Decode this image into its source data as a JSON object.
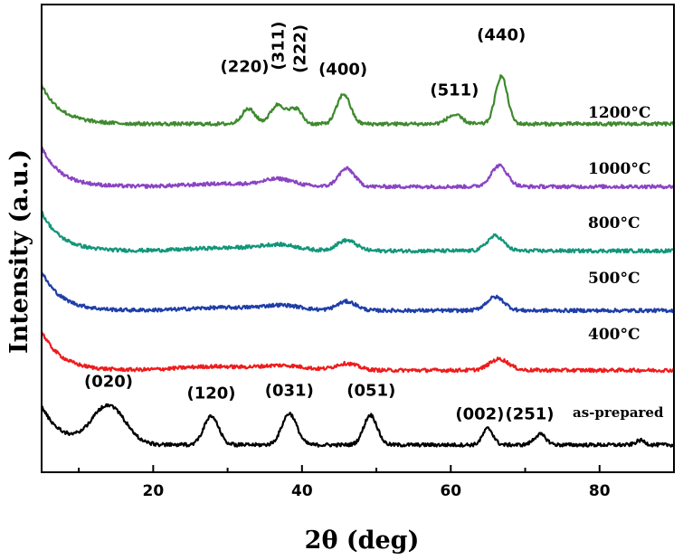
{
  "chart_data": {
    "type": "line",
    "title": "",
    "xlabel": "2θ (deg)",
    "ylabel": "Intensity (a.u.)",
    "xlim": [
      5,
      90
    ],
    "xticks": [
      20,
      40,
      60,
      80
    ],
    "grid": false,
    "series": [
      {
        "name": "as-prepared",
        "label": "as-prepared",
        "color": "#000000",
        "base": 0.5,
        "noise": 0.12,
        "peaks": [
          [
            14,
            2.6,
            2.2
          ],
          [
            27.8,
            1.9,
            1.0
          ],
          [
            38.3,
            2.1,
            1.0
          ],
          [
            49.2,
            2.0,
            0.9
          ],
          [
            65.0,
            1.1,
            0.7
          ],
          [
            72.0,
            0.7,
            0.8
          ],
          [
            85.5,
            0.3,
            0.6
          ]
        ]
      },
      {
        "name": "400°C",
        "label": "400°C",
        "color": "#ee1c1c",
        "base": 5.5,
        "noise": 0.12,
        "peaks": [
          [
            28,
            0.25,
            4.5
          ],
          [
            37.5,
            0.3,
            3.0
          ],
          [
            46.0,
            0.45,
            1.5
          ],
          [
            66.5,
            0.75,
            1.3
          ]
        ]
      },
      {
        "name": "500°C",
        "label": "500°C",
        "color": "#1f3ea8",
        "base": 9.5,
        "noise": 0.12,
        "peaks": [
          [
            30,
            0.2,
            5.0
          ],
          [
            37.5,
            0.3,
            2.5
          ],
          [
            46.0,
            0.6,
            1.3
          ],
          [
            66.0,
            0.9,
            1.2
          ]
        ]
      },
      {
        "name": "800°C",
        "label": "800°C",
        "color": "#12967a",
        "base": 13.5,
        "noise": 0.12,
        "peaks": [
          [
            30,
            0.2,
            5.0
          ],
          [
            37.0,
            0.35,
            2.5
          ],
          [
            46.0,
            0.7,
            1.3
          ],
          [
            66.0,
            1.0,
            1.1
          ]
        ]
      },
      {
        "name": "1000°C",
        "label": "1000°C",
        "color": "#8a44c4",
        "base": 17.8,
        "noise": 0.12,
        "peaks": [
          [
            30,
            0.2,
            5.0
          ],
          [
            37.0,
            0.45,
            2.0
          ],
          [
            46.0,
            1.2,
            1.1
          ],
          [
            66.5,
            1.4,
            1.1
          ]
        ]
      },
      {
        "name": "1200°C",
        "label": "1200°C",
        "color": "#3e8a2e",
        "base": 22.0,
        "noise": 0.12,
        "peaks": [
          [
            32.8,
            1.0,
            0.9
          ],
          [
            36.8,
            1.3,
            1.0
          ],
          [
            39.2,
            1.0,
            0.8
          ],
          [
            45.6,
            2.0,
            0.9
          ],
          [
            60.5,
            0.6,
            1.0
          ],
          [
            66.8,
            3.2,
            0.8
          ]
        ]
      }
    ],
    "peak_labels": [
      {
        "text": "(020)",
        "x": 14.0,
        "y": 4.4
      },
      {
        "text": "(120)",
        "x": 27.8,
        "y": 3.6
      },
      {
        "text": "(031)",
        "x": 38.3,
        "y": 3.8
      },
      {
        "text": "(051)",
        "x": 49.3,
        "y": 3.8
      },
      {
        "text": "(002)",
        "x": 63.9,
        "y": 2.2
      },
      {
        "text": "(251)",
        "x": 70.6,
        "y": 2.2
      },
      {
        "text": "(220)",
        "x": 32.3,
        "y": 25.5
      },
      {
        "text": "(400)",
        "x": 45.5,
        "y": 25.3
      },
      {
        "text": "(511)",
        "x": 60.5,
        "y": 23.9
      },
      {
        "text": "(440)",
        "x": 66.8,
        "y": 27.6
      }
    ],
    "peak_labels_rotated": [
      {
        "text": "(311)",
        "x": 36.8,
        "y": 25.6
      },
      {
        "text": "(222)",
        "x": 39.7,
        "y": 25.4
      }
    ]
  }
}
